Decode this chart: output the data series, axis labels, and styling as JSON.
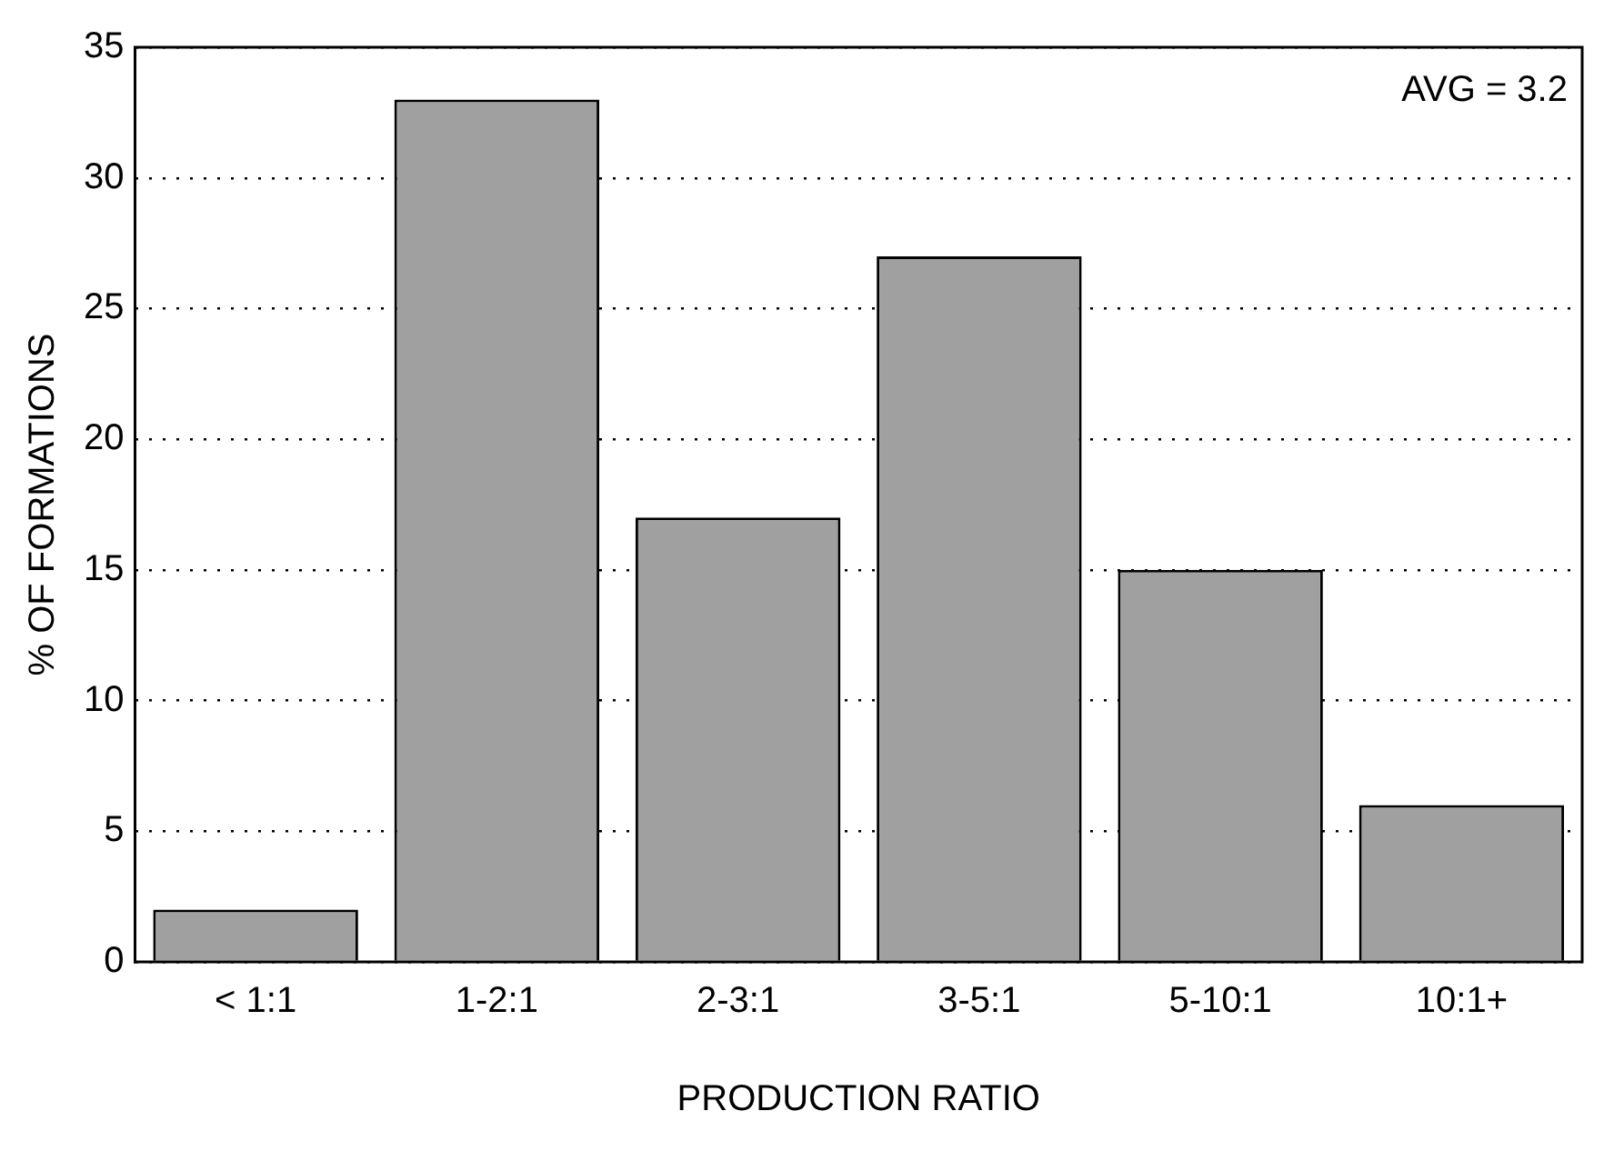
{
  "chart_data": {
    "type": "bar",
    "xlabel": "PRODUCTION RATIO",
    "ylabel": "% OF FORMATIONS",
    "categories": [
      "< 1:1",
      "1-2:1",
      "2-3:1",
      "3-5:1",
      "5-10:1",
      "10:1+"
    ],
    "values": [
      2,
      33,
      17,
      27,
      15,
      6
    ],
    "color": "#a0a0a0",
    "ylim": [
      0,
      35
    ],
    "yticks": [
      0,
      5,
      10,
      15,
      20,
      25,
      30,
      35
    ],
    "grid": "y",
    "legend": false,
    "annotations": [
      "AVG = 3.2"
    ]
  }
}
